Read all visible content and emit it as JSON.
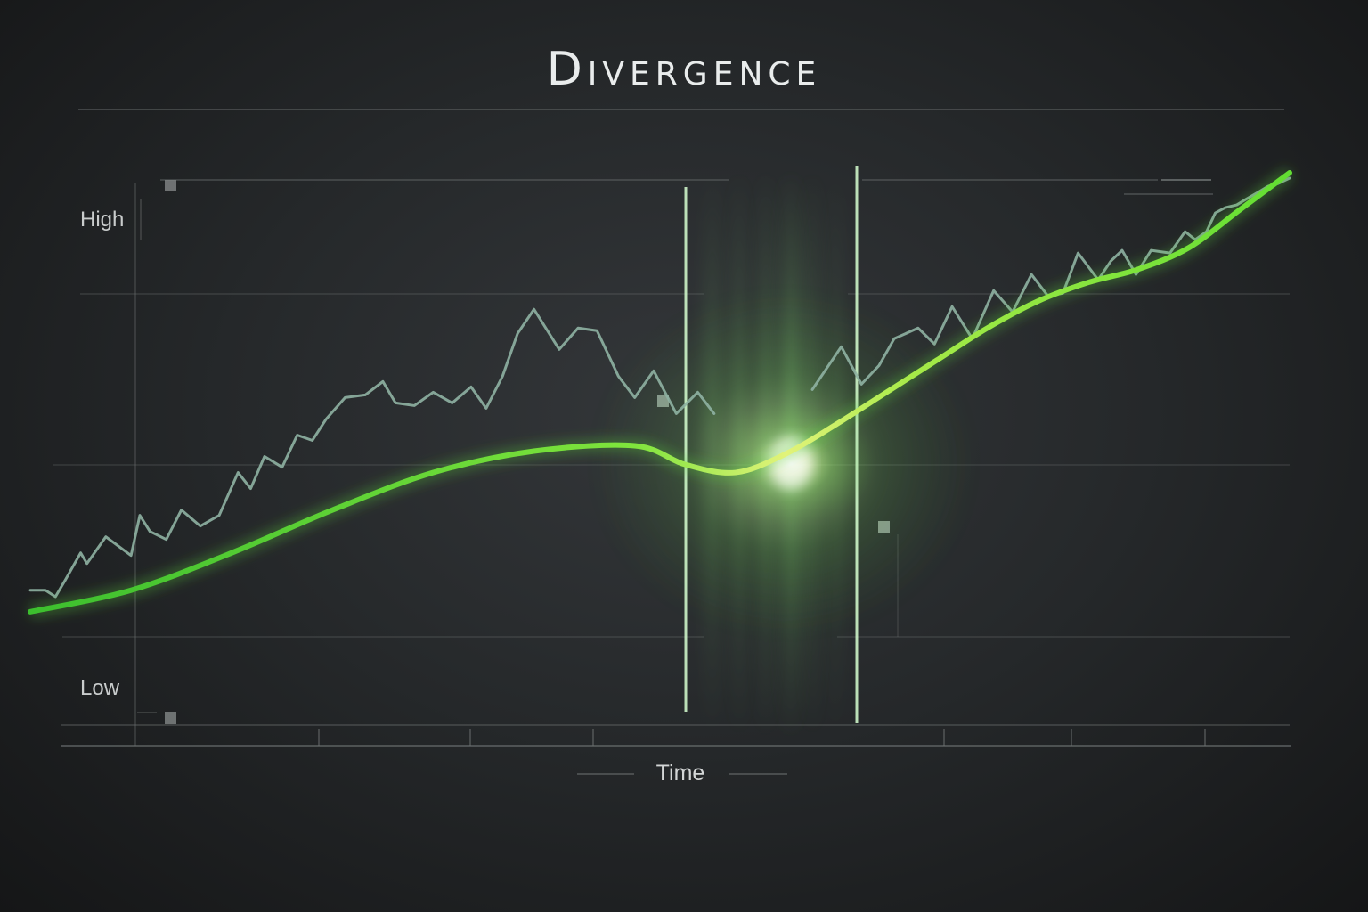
{
  "chart_data": {
    "type": "line",
    "title": "Divergence",
    "xlabel": "Time",
    "ylabel": "",
    "y_labels": {
      "high": "High",
      "low": "Low"
    },
    "xlim": [
      0,
      100
    ],
    "ylim": [
      0,
      100
    ],
    "grid": true,
    "colors": {
      "trend": "#5fd83a",
      "trend_highlight": "#d9f06a",
      "price": "#8fb3a3",
      "grid": "#6c7070",
      "glow": "#7dff6a"
    },
    "series": [
      {
        "role": "trend",
        "x": [
          0,
          8,
          16,
          24,
          32,
          40,
          48,
          52,
          56,
          60,
          64,
          68,
          72,
          76,
          80,
          84,
          88,
          92,
          96,
          100
        ],
        "y": [
          19,
          23,
          30,
          38,
          45,
          49,
          50,
          46.5,
          45,
          48.5,
          54,
          60,
          66,
          72,
          77,
          80.5,
          83,
          87,
          94,
          101
        ]
      },
      {
        "role": "price",
        "x": [
          0,
          1.2,
          2,
          2.8,
          4,
          4.5,
          6,
          8,
          8.7,
          9.5,
          10.8,
          12,
          13.5,
          15,
          16.5,
          17.5,
          18.6,
          20,
          21.2,
          22.4,
          23.5,
          25,
          26.6,
          28,
          29,
          30.5,
          32,
          33.5,
          35,
          36.2,
          37.5,
          38.7,
          40,
          42,
          43.5,
          45,
          46.7,
          48,
          49.5,
          51.3,
          53,
          54.3,
          62.1,
          64.4,
          66,
          67.4,
          68.6,
          70.5,
          71.8,
          73.2,
          74.8,
          76.5,
          78,
          79.5,
          80.8,
          82,
          83.2,
          84.8,
          85.8,
          86.7,
          87.8,
          89,
          90.5,
          91.7,
          92.5,
          93.4,
          94.1,
          94.9,
          95.8,
          96.5,
          97.6,
          98.3,
          99.1,
          100
        ],
        "y": [
          23,
          23,
          21.8,
          25,
          30,
          28,
          33,
          29.5,
          37,
          34,
          32.5,
          38,
          35,
          37,
          45,
          42,
          48,
          46,
          52,
          51,
          55,
          59,
          59.5,
          62,
          58,
          57.5,
          60,
          58,
          61,
          57,
          63,
          71,
          75.5,
          68,
          72,
          71.5,
          63,
          59,
          64,
          56,
          60,
          56,
          60.5,
          68.5,
          61.5,
          65,
          70,
          72,
          69,
          76,
          70,
          79,
          75,
          82,
          78,
          78.5,
          86,
          81,
          84.5,
          86.5,
          82,
          86.5,
          86,
          90,
          88.5,
          90,
          93.5,
          94.5,
          95,
          96,
          97.5,
          98.5,
          99,
          100
        ]
      }
    ]
  }
}
